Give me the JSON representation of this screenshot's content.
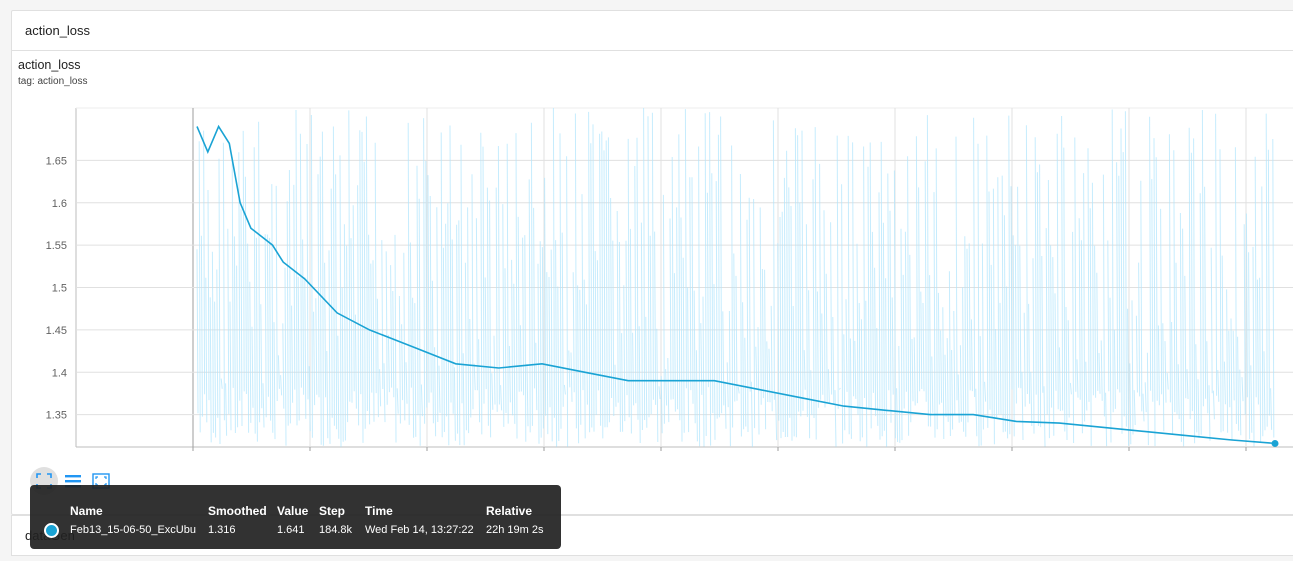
{
  "section": {
    "title": "action_loss"
  },
  "card": {
    "title": "action_loss",
    "tag": "tag: action_loss"
  },
  "chart_data": {
    "type": "line",
    "title": "action_loss",
    "ylim": [
      1.3,
      1.7
    ],
    "y_ticks": [
      "1.35",
      "1.4",
      "1.45",
      "1.5",
      "1.55",
      "1.6",
      "1.65"
    ],
    "y_tick_values": [
      1.35,
      1.4,
      1.45,
      1.5,
      1.55,
      1.6,
      1.65
    ],
    "series": [
      {
        "name": "Feb13_15-06-50_ExcUbu (smoothed)",
        "color": "#1aa3d4",
        "x": [
          0,
          0.01,
          0.02,
          0.03,
          0.04,
          0.05,
          0.06,
          0.07,
          0.08,
          0.1,
          0.13,
          0.16,
          0.2,
          0.24,
          0.28,
          0.32,
          0.36,
          0.4,
          0.44,
          0.48,
          0.52,
          0.56,
          0.6,
          0.64,
          0.68,
          0.72,
          0.76,
          0.8,
          0.84,
          0.88,
          0.92,
          0.96,
          1.0
        ],
        "values": [
          1.69,
          1.66,
          1.69,
          1.67,
          1.6,
          1.57,
          1.56,
          1.55,
          1.53,
          1.51,
          1.47,
          1.45,
          1.43,
          1.41,
          1.405,
          1.41,
          1.4,
          1.39,
          1.39,
          1.39,
          1.38,
          1.37,
          1.36,
          1.355,
          1.35,
          1.35,
          1.342,
          1.34,
          1.335,
          1.33,
          1.325,
          1.32,
          1.316
        ]
      }
    ]
  },
  "controls": {
    "fit_icon": "fit-domain-icon",
    "log_icon": "log-scale-icon",
    "expand_icon": "expand-icon"
  },
  "next_section": {
    "title": "dataGen"
  },
  "tooltip": {
    "headers": {
      "name": "Name",
      "smoothed": "Smoothed",
      "value": "Value",
      "step": "Step",
      "time": "Time",
      "relative": "Relative"
    },
    "row": {
      "color": "#1aa3d4",
      "name": "Feb13_15-06-50_ExcUbu",
      "smoothed": "1.316",
      "value": "1.641",
      "step": "184.8k",
      "time": "Wed Feb 14, 13:27:22",
      "relative": "22h 19m 2s"
    }
  }
}
